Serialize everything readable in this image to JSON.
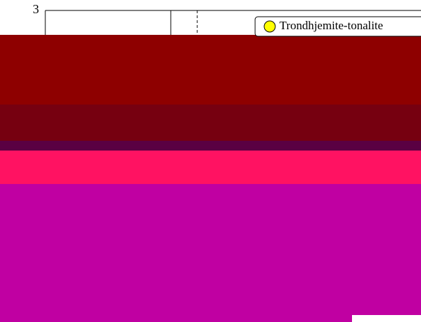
{
  "chart_data": {
    "type": "scatter",
    "yticks": [
      3
    ],
    "series": [
      {
        "name": "Trondhjemite-tonalite",
        "color": "#ffff00"
      }
    ]
  }
}
